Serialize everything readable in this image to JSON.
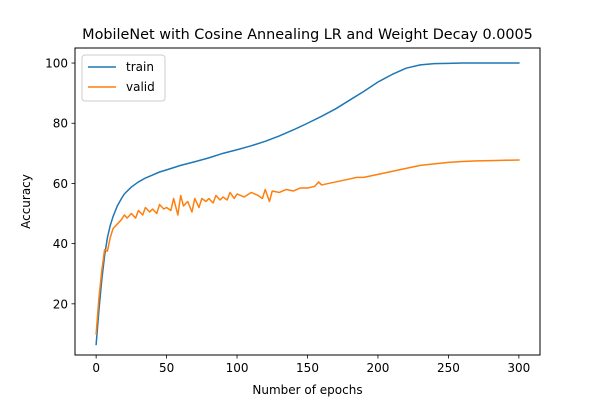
{
  "chart_data": {
    "type": "line",
    "title": "MobileNet with Cosine Annealing LR and Weight Decay 0.0005",
    "xlabel": "Number of epochs",
    "ylabel": "Accuracy",
    "xlim": [
      -15,
      315
    ],
    "ylim": [
      3,
      105
    ],
    "xticks": [
      0,
      50,
      100,
      150,
      200,
      250,
      300
    ],
    "yticks": [
      20,
      40,
      60,
      80,
      100
    ],
    "grid": false,
    "legend_position": "top-left",
    "series": [
      {
        "name": "train",
        "color": "#1f77b4",
        "x": [
          0,
          2,
          4,
          6,
          8,
          10,
          12,
          15,
          18,
          20,
          25,
          30,
          35,
          40,
          45,
          50,
          60,
          70,
          80,
          90,
          100,
          110,
          120,
          130,
          140,
          150,
          160,
          170,
          180,
          190,
          200,
          210,
          220,
          230,
          240,
          250,
          260,
          270,
          280,
          290,
          300
        ],
        "y": [
          6.5,
          18,
          28,
          36,
          42,
          46,
          49,
          52.5,
          55,
          56.5,
          58.8,
          60.5,
          61.8,
          62.8,
          63.8,
          64.5,
          66,
          67.2,
          68.5,
          70,
          71.2,
          72.5,
          74,
          75.8,
          77.8,
          80,
          82.3,
          84.8,
          87.7,
          90.6,
          93.7,
          96.2,
          98.3,
          99.4,
          99.8,
          99.9,
          100,
          100,
          100,
          100,
          100
        ]
      },
      {
        "name": "valid",
        "color": "#ff7f0e",
        "x": [
          0,
          2,
          4,
          6,
          8,
          10,
          12,
          15,
          18,
          20,
          22,
          25,
          28,
          30,
          33,
          35,
          38,
          40,
          43,
          45,
          48,
          50,
          53,
          55,
          58,
          60,
          62,
          65,
          68,
          70,
          73,
          75,
          78,
          80,
          83,
          85,
          88,
          90,
          93,
          95,
          98,
          100,
          105,
          110,
          115,
          118,
          120,
          123,
          125,
          130,
          135,
          140,
          145,
          150,
          155,
          158,
          160,
          165,
          170,
          175,
          180,
          185,
          190,
          195,
          200,
          205,
          210,
          215,
          220,
          230,
          240,
          250,
          260,
          270,
          280,
          290,
          300
        ],
        "y": [
          10,
          22,
          31,
          38,
          37.5,
          42,
          45,
          46.5,
          48,
          49.5,
          48.5,
          50,
          48.5,
          51,
          49.5,
          52,
          50.5,
          51.5,
          50,
          53,
          51.5,
          52,
          51,
          55,
          49.5,
          56,
          52.5,
          54,
          50.5,
          55,
          52,
          55,
          54,
          55,
          53.5,
          56,
          54.5,
          55.5,
          54.5,
          57,
          55,
          56.5,
          55.5,
          57,
          56,
          55,
          58,
          54,
          57.5,
          57,
          58,
          57.5,
          58.5,
          58.5,
          59,
          60.5,
          59.5,
          60,
          60.5,
          61,
          61.5,
          62,
          62,
          62.5,
          63,
          63.5,
          64,
          64.5,
          65,
          66,
          66.5,
          67,
          67.3,
          67.5,
          67.6,
          67.7,
          67.8
        ]
      }
    ]
  }
}
